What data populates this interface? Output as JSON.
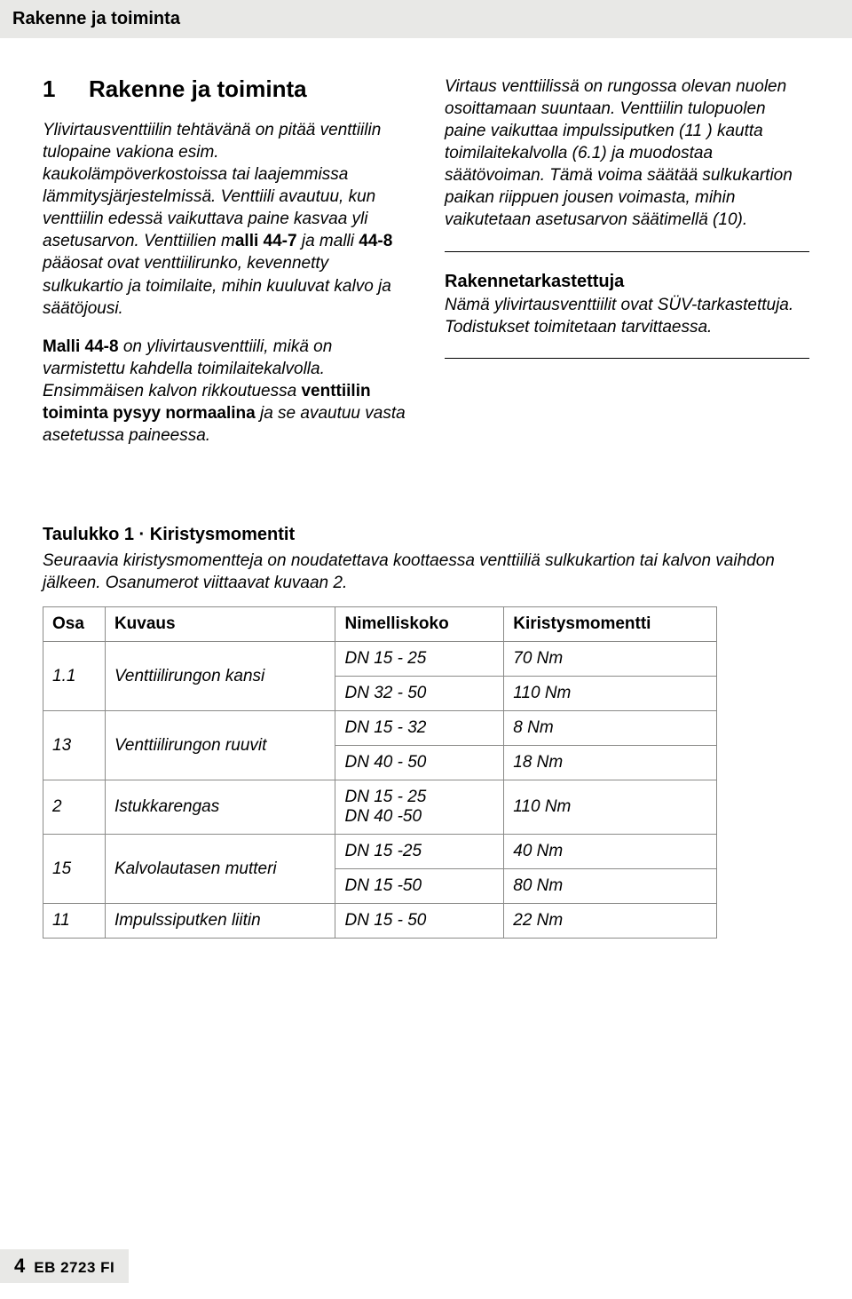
{
  "runningHead": "Rakenne ja toiminta",
  "section": {
    "num": "1",
    "title": "Rakenne ja toiminta"
  },
  "left": {
    "p1a": "Ylivirtausventtiilin tehtävänä on pitää venttiilin tulopaine vakiona esim. kaukolämpöverkostoissa tai laajemmissa lämmitysjärjestelmissä.",
    "p1b_pre": "Venttiili avautuu, kun venttiilin edessä vaikuttava paine kasvaa yli asetusarvon. Venttiilien m",
    "p1b_b1": "alli 44-7",
    "p1b_mid": " ja malli ",
    "p1b_b2": "44-8",
    "p1b_post": " pääosat ovat venttiilirunko, kevennetty sulkukartio ja toimilaite, mihin kuuluvat kalvo ja säätöjousi.",
    "p2_b1": "Malli 44-8",
    "p2_a": " on ylivirtausventtiili, mikä on varmistettu kahdella toimilaitekalvolla. Ensimmäisen kalvon rikkoutuessa ",
    "p2_b2": "venttiilin toiminta pysyy normaalina",
    "p2_c": " ja se avautuu vasta asetetussa paineessa."
  },
  "right": {
    "p1": "Virtaus venttiilissä on rungossa olevan nuolen osoittamaan suuntaan. Venttiilin tulopuolen paine vaikuttaa impulssiputken (11 ) kautta toimilaitekalvolla (6.1) ja muodostaa säätövoiman. Tämä voima säätää sulkukartion paikan riippuen jousen voimasta, mihin vaikutetaan asetusarvon säätimellä (10).",
    "sub": "Rakennetarkastettuja",
    "p2": "Nämä ylivirtausventtiilit ovat SÜV-tarkastettuja. Todistukset toimitetaan tarvittaessa."
  },
  "table": {
    "title_b": "Taulukko 1 · Kiristysmomentit",
    "caption": "Seuraavia kiristysmomentteja on noudatettava koottaessa venttiiliä sulkukartion tai kalvon vaihdon jälkeen. Osanumerot viittaavat kuvaan 2.",
    "headers": {
      "osa": "Osa",
      "kuv": "Kuvaus",
      "nk": "Nimelliskoko",
      "km": "Kiristysmomentti"
    },
    "rows": [
      {
        "osa": "1.1",
        "kuv": "Venttiilirungon kansi",
        "spanOsa": 2,
        "nk": "DN 15 - 25",
        "km": "70 Nm"
      },
      {
        "nk": "DN 32 - 50",
        "km": "110 Nm"
      },
      {
        "osa": "13",
        "kuv": "Venttiilirungon ruuvit",
        "spanOsa": 2,
        "nk": "DN 15 - 32",
        "km": "8 Nm"
      },
      {
        "nk": "DN 40 - 50",
        "km": "18 Nm"
      },
      {
        "osa": "2",
        "kuv": "Istukkarengas",
        "nk": "DN 15 - 25\nDN 40 -50",
        "km": "110 Nm"
      },
      {
        "osa": "15",
        "kuv": "Kalvolautasen mutteri",
        "spanOsa": 2,
        "nk": "DN 15 -25",
        "km": "40 Nm"
      },
      {
        "nk": "DN 15 -50",
        "km": "80 Nm"
      },
      {
        "osa": "11",
        "kuv": "Impulssiputken liitin",
        "nk": "DN 15 - 50",
        "km": "22 Nm"
      }
    ]
  },
  "footer": {
    "page": "4",
    "doc": "EB 2723 FI"
  }
}
